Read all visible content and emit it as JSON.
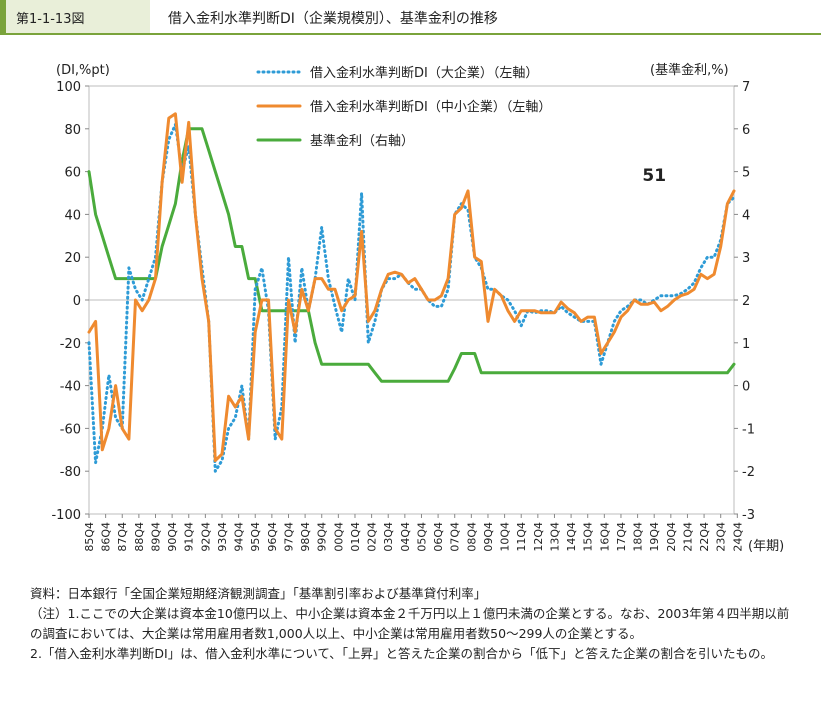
{
  "header": {
    "figure_number": "第1-1-13図",
    "title": "借入金利水準判断DI（企業規模別）、基準金利の推移"
  },
  "chart_data": {
    "type": "line",
    "left_axis_label": "(DI,%pt)",
    "right_axis_label": "(基準金利,%)",
    "x_axis_unit": "(年期)",
    "left_ylim": [
      -100,
      100
    ],
    "left_ticks": [
      "100",
      "80",
      "60",
      "40",
      "20",
      "0",
      "-20",
      "-40",
      "-60",
      "-80",
      "-100"
    ],
    "right_ylim": [
      -3,
      7
    ],
    "right_ticks": [
      "7",
      "6",
      "5",
      "4",
      "3",
      "2",
      "1",
      "0",
      "-1",
      "-2",
      "-3"
    ],
    "x_tick_labels": [
      "85Q4",
      "86Q4",
      "87Q4",
      "88Q4",
      "89Q4",
      "90Q4",
      "91Q4",
      "92Q4",
      "93Q4",
      "94Q4",
      "95Q4",
      "96Q4",
      "97Q4",
      "98Q4",
      "99Q4",
      "00Q4",
      "01Q4",
      "02Q4",
      "03Q4",
      "04Q4",
      "05Q4",
      "06Q4",
      "07Q4",
      "08Q4",
      "09Q4",
      "10Q4",
      "11Q4",
      "12Q4",
      "13Q4",
      "14Q4",
      "15Q4",
      "16Q4",
      "17Q4",
      "18Q4",
      "19Q4",
      "20Q4",
      "21Q4",
      "22Q4",
      "23Q4",
      "24Q4"
    ],
    "annotations": [
      {
        "text": "51",
        "x": 85,
        "y": 51
      },
      {
        "text": "51",
        "x": 156,
        "y": 51
      }
    ],
    "legend_placement": "top-center",
    "series": [
      {
        "name": "借入金利水準判断DI（大企業）（左軸）",
        "axis": "left",
        "style": "dotted",
        "color": "#2e9bd6",
        "points": [
          [
            0,
            -20
          ],
          [
            1,
            -76
          ],
          [
            2,
            -60
          ],
          [
            3,
            -35
          ],
          [
            4,
            -55
          ],
          [
            5,
            -60
          ],
          [
            6,
            15
          ],
          [
            7,
            5
          ],
          [
            8,
            0
          ],
          [
            9,
            10
          ],
          [
            10,
            20
          ],
          [
            11,
            55
          ],
          [
            12,
            75
          ],
          [
            13,
            82
          ],
          [
            14,
            60
          ],
          [
            15,
            72
          ],
          [
            16,
            40
          ],
          [
            17,
            15
          ],
          [
            18,
            -10
          ],
          [
            19,
            -80
          ],
          [
            20,
            -75
          ],
          [
            21,
            -60
          ],
          [
            22,
            -55
          ],
          [
            23,
            -40
          ],
          [
            24,
            -65
          ],
          [
            25,
            5
          ],
          [
            26,
            15
          ],
          [
            27,
            -5
          ],
          [
            28,
            -65
          ],
          [
            29,
            -50
          ],
          [
            30,
            20
          ],
          [
            31,
            -20
          ],
          [
            32,
            15
          ],
          [
            33,
            -5
          ],
          [
            34,
            10
          ],
          [
            35,
            34
          ],
          [
            36,
            10
          ],
          [
            37,
            -3
          ],
          [
            38,
            -15
          ],
          [
            39,
            10
          ],
          [
            40,
            0
          ],
          [
            41,
            50
          ],
          [
            42,
            -20
          ],
          [
            43,
            -10
          ],
          [
            44,
            5
          ],
          [
            45,
            10
          ],
          [
            46,
            10
          ],
          [
            47,
            12
          ],
          [
            48,
            8
          ],
          [
            49,
            5
          ],
          [
            50,
            5
          ],
          [
            51,
            0
          ],
          [
            52,
            -3
          ],
          [
            53,
            -3
          ],
          [
            54,
            5
          ],
          [
            55,
            40
          ],
          [
            56,
            45
          ],
          [
            57,
            42
          ],
          [
            58,
            20
          ],
          [
            59,
            15
          ],
          [
            60,
            5
          ],
          [
            61,
            5
          ],
          [
            62,
            2
          ],
          [
            63,
            0
          ],
          [
            64,
            -5
          ],
          [
            65,
            -12
          ],
          [
            66,
            -5
          ],
          [
            67,
            -6
          ],
          [
            68,
            -5
          ],
          [
            69,
            -5
          ],
          [
            70,
            -6
          ],
          [
            71,
            -3
          ],
          [
            72,
            -6
          ],
          [
            73,
            -8
          ],
          [
            74,
            -10
          ],
          [
            75,
            -10
          ],
          [
            76,
            -10
          ],
          [
            77,
            -30
          ],
          [
            78,
            -20
          ],
          [
            79,
            -10
          ],
          [
            80,
            -5
          ],
          [
            81,
            -3
          ],
          [
            82,
            0
          ],
          [
            83,
            0
          ],
          [
            84,
            -2
          ],
          [
            85,
            0
          ],
          [
            86,
            2
          ],
          [
            87,
            2
          ],
          [
            88,
            2
          ],
          [
            89,
            3
          ],
          [
            90,
            5
          ],
          [
            91,
            8
          ],
          [
            92,
            15
          ],
          [
            93,
            20
          ],
          [
            94,
            20
          ],
          [
            95,
            28
          ],
          [
            96,
            45
          ],
          [
            97,
            48
          ]
        ]
      },
      {
        "name": "借入金利水準判断DI（中小企業）（左軸）",
        "axis": "left",
        "style": "solid",
        "color": "#ef8a2f",
        "points": [
          [
            0,
            -15
          ],
          [
            1,
            -10
          ],
          [
            2,
            -70
          ],
          [
            3,
            -60
          ],
          [
            4,
            -40
          ],
          [
            5,
            -60
          ],
          [
            6,
            -65
          ],
          [
            7,
            0
          ],
          [
            8,
            -5
          ],
          [
            9,
            0
          ],
          [
            10,
            10
          ],
          [
            11,
            55
          ],
          [
            12,
            85
          ],
          [
            13,
            87
          ],
          [
            14,
            55
          ],
          [
            15,
            83
          ],
          [
            16,
            40
          ],
          [
            17,
            10
          ],
          [
            18,
            -10
          ],
          [
            19,
            -75
          ],
          [
            20,
            -72
          ],
          [
            21,
            -45
          ],
          [
            22,
            -50
          ],
          [
            23,
            -45
          ],
          [
            24,
            -65
          ],
          [
            25,
            -15
          ],
          [
            26,
            0
          ],
          [
            27,
            0
          ],
          [
            28,
            -60
          ],
          [
            29,
            -65
          ],
          [
            30,
            0
          ],
          [
            31,
            -15
          ],
          [
            32,
            5
          ],
          [
            33,
            -5
          ],
          [
            34,
            10
          ],
          [
            35,
            10
          ],
          [
            36,
            5
          ],
          [
            37,
            5
          ],
          [
            38,
            -5
          ],
          [
            39,
            0
          ],
          [
            40,
            2
          ],
          [
            41,
            32
          ],
          [
            42,
            -10
          ],
          [
            43,
            -5
          ],
          [
            44,
            5
          ],
          [
            45,
            12
          ],
          [
            46,
            13
          ],
          [
            47,
            12
          ],
          [
            48,
            8
          ],
          [
            49,
            10
          ],
          [
            50,
            5
          ],
          [
            51,
            0
          ],
          [
            52,
            0
          ],
          [
            53,
            2
          ],
          [
            54,
            10
          ],
          [
            55,
            40
          ],
          [
            56,
            43
          ],
          [
            57,
            51
          ],
          [
            58,
            20
          ],
          [
            59,
            18
          ],
          [
            60,
            -10
          ],
          [
            61,
            5
          ],
          [
            62,
            2
          ],
          [
            63,
            -5
          ],
          [
            64,
            -10
          ],
          [
            65,
            -5
          ],
          [
            66,
            -5
          ],
          [
            67,
            -5
          ],
          [
            68,
            -6
          ],
          [
            69,
            -6
          ],
          [
            70,
            -6
          ],
          [
            71,
            -1
          ],
          [
            72,
            -4
          ],
          [
            73,
            -6
          ],
          [
            74,
            -10
          ],
          [
            75,
            -8
          ],
          [
            76,
            -8
          ],
          [
            77,
            -25
          ],
          [
            78,
            -20
          ],
          [
            79,
            -15
          ],
          [
            80,
            -8
          ],
          [
            81,
            -5
          ],
          [
            82,
            0
          ],
          [
            83,
            -2
          ],
          [
            84,
            -2
          ],
          [
            85,
            -1
          ],
          [
            86,
            -5
          ],
          [
            87,
            -3
          ],
          [
            88,
            0
          ],
          [
            89,
            2
          ],
          [
            90,
            3
          ],
          [
            91,
            5
          ],
          [
            92,
            12
          ],
          [
            93,
            10
          ],
          [
            94,
            12
          ],
          [
            95,
            25
          ],
          [
            96,
            45
          ],
          [
            97,
            51
          ]
        ]
      },
      {
        "name": "基準金利（右軸）",
        "axis": "right",
        "style": "solid",
        "color": "#4aab3c",
        "points": [
          [
            0,
            5.0
          ],
          [
            1,
            4.0
          ],
          [
            2,
            3.5
          ],
          [
            3,
            3.0
          ],
          [
            4,
            2.5
          ],
          [
            5,
            2.5
          ],
          [
            6,
            2.5
          ],
          [
            7,
            2.5
          ],
          [
            8,
            2.5
          ],
          [
            9,
            2.5
          ],
          [
            10,
            2.5
          ],
          [
            11,
            3.25
          ],
          [
            12,
            3.75
          ],
          [
            13,
            4.25
          ],
          [
            14,
            5.25
          ],
          [
            15,
            6.0
          ],
          [
            16,
            6.0
          ],
          [
            17,
            6.0
          ],
          [
            18,
            5.5
          ],
          [
            19,
            5.0
          ],
          [
            20,
            4.5
          ],
          [
            21,
            4.0
          ],
          [
            22,
            3.25
          ],
          [
            23,
            3.25
          ],
          [
            24,
            2.5
          ],
          [
            25,
            2.5
          ],
          [
            26,
            1.75
          ],
          [
            27,
            1.75
          ],
          [
            28,
            1.75
          ],
          [
            29,
            1.75
          ],
          [
            30,
            1.75
          ],
          [
            31,
            1.75
          ],
          [
            32,
            1.75
          ],
          [
            33,
            1.75
          ],
          [
            34,
            1.0
          ],
          [
            35,
            0.5
          ],
          [
            36,
            0.5
          ],
          [
            37,
            0.5
          ],
          [
            38,
            0.5
          ],
          [
            39,
            0.5
          ],
          [
            40,
            0.5
          ],
          [
            41,
            0.5
          ],
          [
            42,
            0.5
          ],
          [
            43,
            0.3
          ],
          [
            44,
            0.1
          ],
          [
            45,
            0.1
          ],
          [
            46,
            0.1
          ],
          [
            47,
            0.1
          ],
          [
            48,
            0.1
          ],
          [
            49,
            0.1
          ],
          [
            50,
            0.1
          ],
          [
            51,
            0.1
          ],
          [
            52,
            0.1
          ],
          [
            53,
            0.1
          ],
          [
            54,
            0.1
          ],
          [
            55,
            0.4
          ],
          [
            56,
            0.75
          ],
          [
            57,
            0.75
          ],
          [
            58,
            0.75
          ],
          [
            59,
            0.3
          ],
          [
            60,
            0.3
          ],
          [
            61,
            0.3
          ],
          [
            62,
            0.3
          ],
          [
            63,
            0.3
          ],
          [
            64,
            0.3
          ],
          [
            65,
            0.3
          ],
          [
            66,
            0.3
          ],
          [
            67,
            0.3
          ],
          [
            68,
            0.3
          ],
          [
            69,
            0.3
          ],
          [
            70,
            0.3
          ],
          [
            71,
            0.3
          ],
          [
            72,
            0.3
          ],
          [
            73,
            0.3
          ],
          [
            74,
            0.3
          ],
          [
            75,
            0.3
          ],
          [
            76,
            0.3
          ],
          [
            77,
            0.3
          ],
          [
            78,
            0.3
          ],
          [
            79,
            0.3
          ],
          [
            80,
            0.3
          ],
          [
            81,
            0.3
          ],
          [
            82,
            0.3
          ],
          [
            83,
            0.3
          ],
          [
            84,
            0.3
          ],
          [
            85,
            0.3
          ],
          [
            86,
            0.3
          ],
          [
            87,
            0.3
          ],
          [
            88,
            0.3
          ],
          [
            89,
            0.3
          ],
          [
            90,
            0.3
          ],
          [
            91,
            0.3
          ],
          [
            92,
            0.3
          ],
          [
            93,
            0.3
          ],
          [
            94,
            0.3
          ],
          [
            95,
            0.3
          ],
          [
            96,
            0.3
          ],
          [
            97,
            0.5
          ]
        ]
      }
    ]
  },
  "notes": [
    "資料：日本銀行「全国企業短期経済観測調査」「基準割引率および基準貸付利率」",
    "（注）1.ここでの大企業は資本金10億円以上、中小企業は資本金２千万円以上１億円未満の企業とする。なお、2003年第４四半期以前の調査においては、大企業は常用雇用者数1,000人以上、中小企業は常用雇用者数50～299人の企業とする。",
    "2.「借入金利水準判断DI」は、借入金利水準について、「上昇」と答えた企業の割合から「低下」と答えた企業の割合を引いたもの。"
  ]
}
